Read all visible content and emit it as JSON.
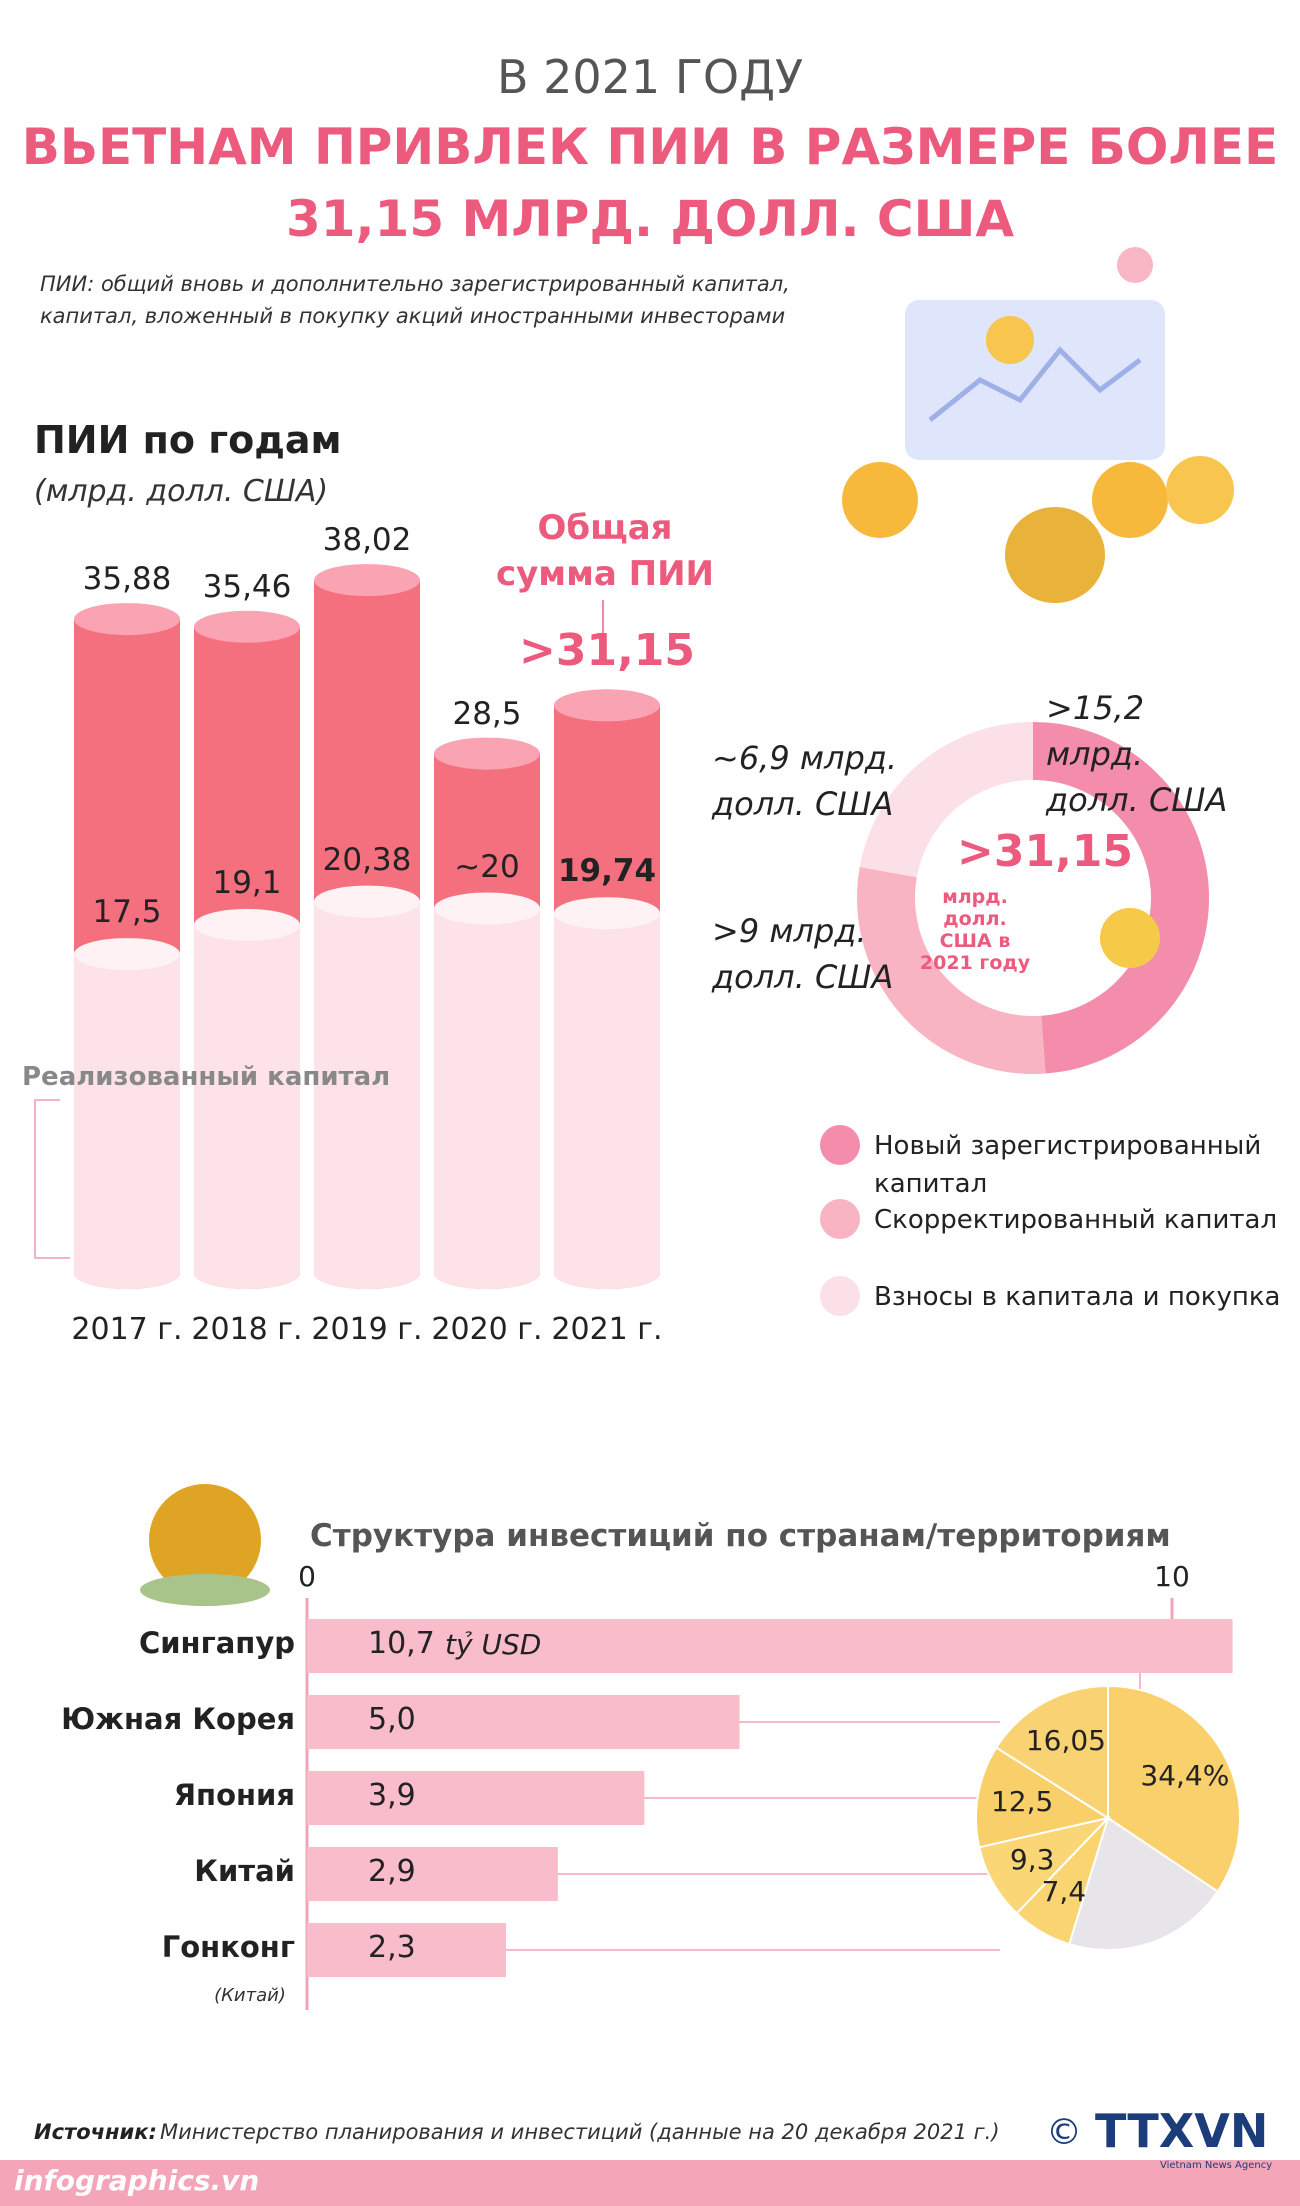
{
  "header": {
    "line1": "В 2021 ГОДУ",
    "line2": "ВЬЕТНАМ ПРИВЛЕК ПИИ В РАЗМЕРЕ БОЛЕЕ",
    "line3": "31,15 МЛРД. ДОЛЛ. США",
    "note1": "ПИИ: общий вновь и дополнительно зарегистрированный капитал,",
    "note2": "капитал, вложенный в покупку акций иностранными инвесторами"
  },
  "chart_data": [
    {
      "type": "cylinder",
      "title": "ПИИ по годам",
      "subtitle": "(млрд. долл. США)",
      "categories": [
        "2017 г.",
        "2018 г.",
        "2019 г.",
        "2020 г.",
        "2021 г."
      ],
      "series": [
        {
          "name": "Общая сумма ПИИ",
          "color": "#f5707f",
          "values": [
            35.88,
            35.46,
            38.02,
            28.5,
            31.15
          ],
          "value_labels": [
            "35,88",
            "35,46",
            "38,02",
            "28,5",
            ">31,15"
          ]
        },
        {
          "name": "Реализованный капитал",
          "color": "#fde3e8",
          "values": [
            17.5,
            19.1,
            20.38,
            20,
            19.74
          ],
          "value_labels": [
            "17,5",
            "19,1",
            "20,38",
            "~20",
            "19,74"
          ]
        }
      ],
      "ylim": [
        0,
        40
      ]
    },
    {
      "type": "donut",
      "categories": [
        "Новый зарегистрированный капитал",
        "Скорректированный капитал",
        "Взносы в капитала и покупка"
      ],
      "values": [
        15.2,
        9,
        6.9
      ],
      "value_labels": [
        ">15,2 млрд. долл. США",
        ">9 млрд. долл. США",
        "~6,9 млрд. долл. США"
      ],
      "colors": [
        "#f48dab",
        "#f9b4c3",
        "#fbe0e8"
      ],
      "center_value": ">31,15",
      "center_text": "млрд. долл. США в 2021 году"
    },
    {
      "type": "hbar",
      "title": "Структура инвестиций по странам/территориям",
      "categories": [
        "Сингапур",
        "Южная Корея",
        "Япония",
        "Китай",
        "Гонконг"
      ],
      "note": "(Китай)",
      "values": [
        10.7,
        5.0,
        3.9,
        2.9,
        2.3
      ],
      "value_labels": [
        "10,7",
        "5,0",
        "3,9",
        "2,9",
        "2,3"
      ],
      "unit": "tỷ USD",
      "color": "#f9bccb",
      "xlim": [
        0,
        10
      ],
      "xticks": [
        0,
        10
      ]
    },
    {
      "type": "pie",
      "values": [
        34.4,
        20.35,
        7.4,
        9.3,
        12.5,
        16.05
      ],
      "value_labels": [
        "34,4%",
        null,
        "7,4",
        "9,3",
        "12,5",
        "16,05"
      ],
      "colors": [
        "#f9d06c",
        "#e8e5ea",
        "#f9d470",
        "#fad677",
        "#f8cf68",
        "#f9d373"
      ]
    }
  ],
  "source": {
    "label": "Источник:",
    "text": "Министерство планирования и инвестиций (данные на 20 декабря 2021 г.)"
  },
  "footer": {
    "site": "infographics.vn",
    "copyright": "©",
    "logo": "TTXVN",
    "agency": "Vietnam News Agency"
  }
}
